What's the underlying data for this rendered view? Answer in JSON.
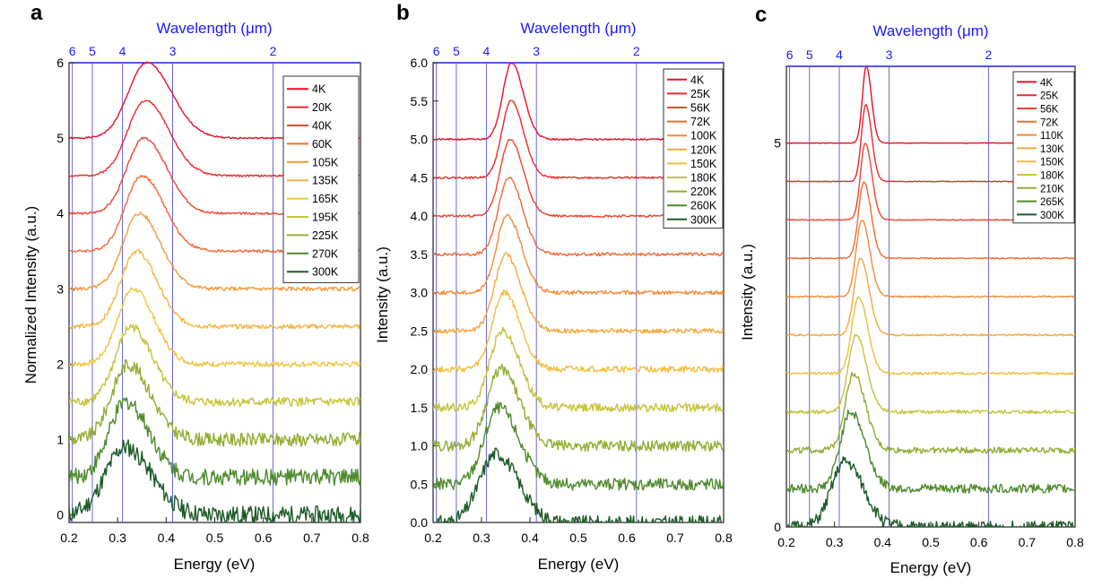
{
  "figure": {
    "title_wavelength": "Wavelength (μm)",
    "energy_label": "Energy (eV)"
  },
  "chart_data": [
    {
      "panel": "a",
      "type": "line",
      "title": "Wavelength (μm)",
      "xlabel": "Energy (eV)",
      "ylabel": "Normalized Intensity (a.u.)",
      "xlim": [
        0.2,
        0.8
      ],
      "ylim": [
        -0.1,
        6.0
      ],
      "x_ticks": [
        "0.2",
        "0.3",
        "0.4",
        "0.5",
        "0.6",
        "0.7",
        "0.8"
      ],
      "y_ticks": [
        "0",
        "1",
        "2",
        "3",
        "4",
        "5",
        "6"
      ],
      "top_ticks": [
        {
          "label": "6",
          "energy": 0.2067
        },
        {
          "label": "5",
          "energy": 0.248
        },
        {
          "label": "4",
          "energy": 0.31
        },
        {
          "label": "3",
          "energy": 0.4133
        },
        {
          "label": "2",
          "energy": 0.62
        }
      ],
      "legend_position": "top-right",
      "series": [
        {
          "name": "4K",
          "color": "#e8102a",
          "offset": 5.0,
          "peak": 0.36,
          "amp": 1.0,
          "width": 0.038,
          "noise": 0.01,
          "seed": 1
        },
        {
          "name": "20K",
          "color": "#ea2a2d",
          "offset": 4.5,
          "peak": 0.357,
          "amp": 1.0,
          "width": 0.036,
          "noise": 0.012,
          "seed": 2
        },
        {
          "name": "40K",
          "color": "#ec4530",
          "offset": 4.0,
          "peak": 0.354,
          "amp": 1.0,
          "width": 0.035,
          "noise": 0.014,
          "seed": 3
        },
        {
          "name": "60K",
          "color": "#ef6a35",
          "offset": 3.5,
          "peak": 0.35,
          "amp": 1.0,
          "width": 0.034,
          "noise": 0.018,
          "seed": 4
        },
        {
          "name": "105K",
          "color": "#f39a3b",
          "offset": 3.0,
          "peak": 0.344,
          "amp": 1.0,
          "width": 0.033,
          "noise": 0.025,
          "seed": 5
        },
        {
          "name": "135K",
          "color": "#f4b640",
          "offset": 2.5,
          "peak": 0.338,
          "amp": 1.0,
          "width": 0.032,
          "noise": 0.03,
          "seed": 6
        },
        {
          "name": "165K",
          "color": "#efc63f",
          "offset": 2.0,
          "peak": 0.332,
          "amp": 1.0,
          "width": 0.032,
          "noise": 0.035,
          "seed": 7
        },
        {
          "name": "195K",
          "color": "#c6c43a",
          "offset": 1.5,
          "peak": 0.328,
          "amp": 1.0,
          "width": 0.032,
          "noise": 0.06,
          "seed": 8
        },
        {
          "name": "225K",
          "color": "#92ad33",
          "offset": 1.0,
          "peak": 0.322,
          "amp": 1.0,
          "width": 0.034,
          "noise": 0.09,
          "seed": 9
        },
        {
          "name": "270K",
          "color": "#4e8a2c",
          "offset": 0.5,
          "peak": 0.318,
          "amp": 1.0,
          "width": 0.035,
          "noise": 0.11,
          "seed": 10
        },
        {
          "name": "300K",
          "color": "#1d5a27",
          "offset": 0.0,
          "peak": 0.315,
          "amp": 0.9,
          "width": 0.04,
          "noise": 0.12,
          "seed": 11
        }
      ]
    },
    {
      "panel": "b",
      "type": "line",
      "title": "Wavelength (μm)",
      "xlabel": "Energy (eV)",
      "ylabel": "Intensity (a.u.)",
      "xlim": [
        0.2,
        0.8
      ],
      "ylim": [
        0.0,
        6.0
      ],
      "x_ticks": [
        "0.2",
        "0.3",
        "0.4",
        "0.5",
        "0.6",
        "0.7",
        "0.8"
      ],
      "y_ticks": [
        "0.0",
        "0.5",
        "1.0",
        "1.5",
        "2.0",
        "2.5",
        "3.0",
        "3.5",
        "4.0",
        "4.5",
        "5.0",
        "5.5",
        "6.0"
      ],
      "top_ticks": [
        {
          "label": "6",
          "energy": 0.2067
        },
        {
          "label": "5",
          "energy": 0.248
        },
        {
          "label": "4",
          "energy": 0.31
        },
        {
          "label": "3",
          "energy": 0.4133
        },
        {
          "label": "2",
          "energy": 0.62
        }
      ],
      "legend_position": "top-right",
      "series": [
        {
          "name": "4K",
          "color": "#e8102a",
          "offset": 5.0,
          "peak": 0.362,
          "amp": 1.0,
          "width": 0.018,
          "noise": 0.01,
          "seed": 21
        },
        {
          "name": "25K",
          "color": "#ea2a2d",
          "offset": 4.5,
          "peak": 0.361,
          "amp": 1.0,
          "width": 0.019,
          "noise": 0.012,
          "seed": 22
        },
        {
          "name": "56K",
          "color": "#ec4530",
          "offset": 4.0,
          "peak": 0.359,
          "amp": 1.0,
          "width": 0.02,
          "noise": 0.015,
          "seed": 23
        },
        {
          "name": "72K",
          "color": "#ef6a35",
          "offset": 3.5,
          "peak": 0.356,
          "amp": 1.0,
          "width": 0.021,
          "noise": 0.02,
          "seed": 24
        },
        {
          "name": "100K",
          "color": "#f28a38",
          "offset": 3.0,
          "peak": 0.353,
          "amp": 1.0,
          "width": 0.022,
          "noise": 0.025,
          "seed": 25
        },
        {
          "name": "120K",
          "color": "#f4a83d",
          "offset": 2.5,
          "peak": 0.35,
          "amp": 1.0,
          "width": 0.023,
          "noise": 0.03,
          "seed": 26
        },
        {
          "name": "150K",
          "color": "#f1be40",
          "offset": 2.0,
          "peak": 0.347,
          "amp": 1.0,
          "width": 0.024,
          "noise": 0.04,
          "seed": 27
        },
        {
          "name": "180K",
          "color": "#c6c43a",
          "offset": 1.5,
          "peak": 0.343,
          "amp": 1.0,
          "width": 0.026,
          "noise": 0.055,
          "seed": 28
        },
        {
          "name": "220K",
          "color": "#92ad33",
          "offset": 1.0,
          "peak": 0.34,
          "amp": 1.0,
          "width": 0.028,
          "noise": 0.07,
          "seed": 29
        },
        {
          "name": "260K",
          "color": "#4e8a2c",
          "offset": 0.5,
          "peak": 0.336,
          "amp": 1.0,
          "width": 0.03,
          "noise": 0.08,
          "seed": 30
        },
        {
          "name": "300K",
          "color": "#1d5a27",
          "offset": 0.0,
          "peak": 0.33,
          "amp": 0.9,
          "width": 0.034,
          "noise": 0.09,
          "seed": 31
        }
      ]
    },
    {
      "panel": "c",
      "type": "line",
      "title": "Wavelength (μm)",
      "xlabel": "Energy (eV)",
      "ylabel": "Intensity (a.u.)",
      "xlim": [
        0.2,
        0.8
      ],
      "ylim": [
        0.0,
        6.0
      ],
      "x_ticks": [
        "0.2",
        "0.3",
        "0.4",
        "0.5",
        "0.6",
        "0.7",
        "0.8"
      ],
      "y_ticks": [
        "0",
        "5"
      ],
      "top_ticks": [
        {
          "label": "6",
          "energy": 0.2067
        },
        {
          "label": "5",
          "energy": 0.248
        },
        {
          "label": "4",
          "energy": 0.31
        },
        {
          "label": "3",
          "energy": 0.4133
        },
        {
          "label": "2",
          "energy": 0.62
        }
      ],
      "legend_position": "top-right",
      "series": [
        {
          "name": "4K",
          "color": "#e8102a",
          "offset": 5.0,
          "peak": 0.366,
          "amp": 1.0,
          "width": 0.008,
          "noise": 0.004,
          "seed": 41
        },
        {
          "name": "25K",
          "color": "#ea2a2d",
          "offset": 4.5,
          "peak": 0.365,
          "amp": 1.0,
          "width": 0.009,
          "noise": 0.005,
          "seed": 42
        },
        {
          "name": "56K",
          "color": "#ec4530",
          "offset": 4.0,
          "peak": 0.364,
          "amp": 1.0,
          "width": 0.01,
          "noise": 0.006,
          "seed": 43
        },
        {
          "name": "72K",
          "color": "#ef6a35",
          "offset": 3.5,
          "peak": 0.361,
          "amp": 1.0,
          "width": 0.011,
          "noise": 0.008,
          "seed": 44
        },
        {
          "name": "110K",
          "color": "#f28a38",
          "offset": 3.0,
          "peak": 0.357,
          "amp": 1.0,
          "width": 0.012,
          "noise": 0.01,
          "seed": 45
        },
        {
          "name": "130K",
          "color": "#f4a83d",
          "offset": 2.5,
          "peak": 0.354,
          "amp": 1.0,
          "width": 0.013,
          "noise": 0.012,
          "seed": 46
        },
        {
          "name": "150K",
          "color": "#f1be40",
          "offset": 2.0,
          "peak": 0.35,
          "amp": 1.0,
          "width": 0.014,
          "noise": 0.016,
          "seed": 47
        },
        {
          "name": "180K",
          "color": "#c6c43a",
          "offset": 1.5,
          "peak": 0.345,
          "amp": 1.0,
          "width": 0.016,
          "noise": 0.025,
          "seed": 48
        },
        {
          "name": "210K",
          "color": "#92ad33",
          "offset": 1.0,
          "peak": 0.34,
          "amp": 1.0,
          "width": 0.018,
          "noise": 0.04,
          "seed": 49
        },
        {
          "name": "265K",
          "color": "#4e8a2c",
          "offset": 0.5,
          "peak": 0.334,
          "amp": 1.0,
          "width": 0.022,
          "noise": 0.06,
          "seed": 50
        },
        {
          "name": "300K",
          "color": "#1d5a27",
          "offset": 0.0,
          "peak": 0.322,
          "amp": 0.85,
          "width": 0.028,
          "noise": 0.08,
          "seed": 51
        }
      ]
    }
  ]
}
